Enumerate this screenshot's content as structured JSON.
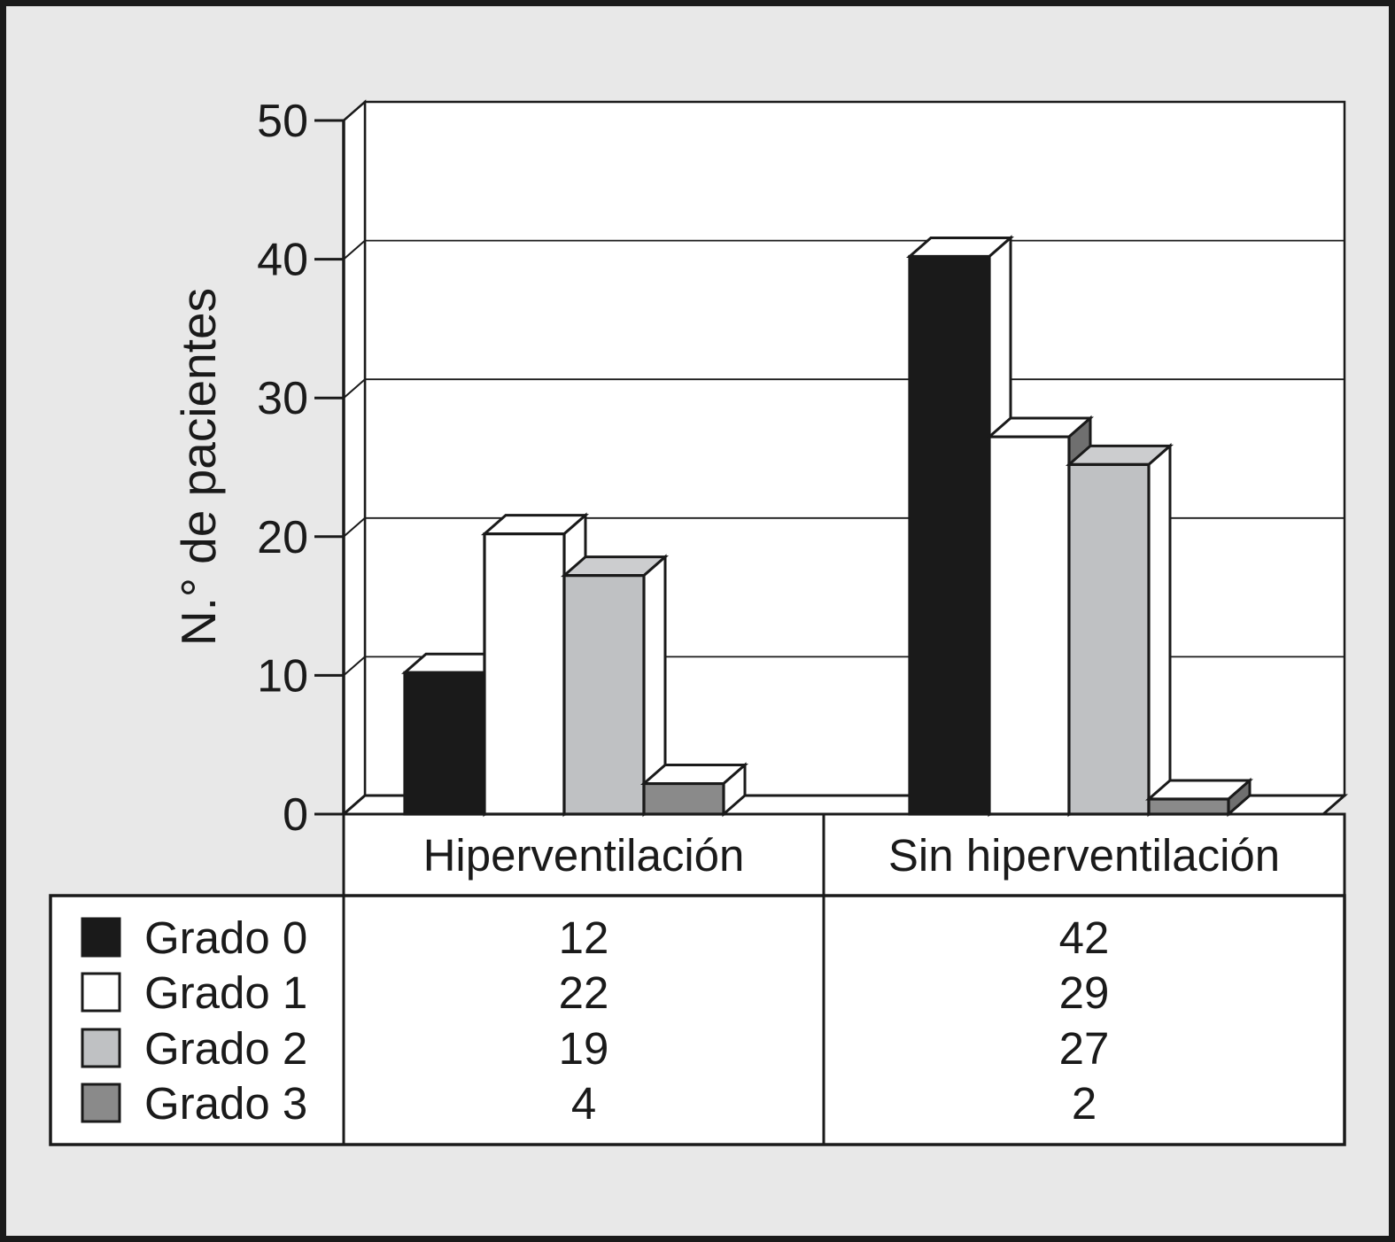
{
  "figure": {
    "background_color": "#e8e8e8",
    "ink_color": "#1a1a1a",
    "plot_fill": "#ffffff"
  },
  "chart_data": {
    "type": "bar",
    "subtype": "grouped-3d-effect",
    "title": "",
    "xlabel": "",
    "ylabel": "N.° de pacientes",
    "categories": [
      "Hiperventilación",
      "Sin hiperventilación"
    ],
    "series": [
      {
        "name": "Grado 0",
        "values": [
          12,
          42
        ],
        "color": "#1a1a1a"
      },
      {
        "name": "Grado 1",
        "values": [
          22,
          29
        ],
        "color": "#ffffff"
      },
      {
        "name": "Grado 2",
        "values": [
          19,
          27
        ],
        "color": "#bfc1c3"
      },
      {
        "name": "Grado 3",
        "values": [
          4,
          2
        ],
        "color": "#8a8a8a"
      }
    ],
    "ylim": [
      0,
      50
    ],
    "yticks": [
      0,
      10,
      20,
      30,
      40,
      50
    ],
    "grid": true,
    "legend_position": "bottom-table-left",
    "face_shading": {
      "top_faces": [
        "#ffffff",
        "#ffffff",
        "#cccdcf",
        "#ffffff"
      ],
      "side_faces_by_group": [
        [
          "#ffffff",
          "#ffffff",
          "#ffffff",
          "#ffffff"
        ],
        [
          "#ffffff",
          "#6f6f6f",
          "#ffffff",
          "#6f6f6f"
        ]
      ]
    },
    "data_table": {
      "columns": [
        "Hiperventilación",
        "Sin hiperventilación"
      ],
      "row_labels": [
        "Grado 0",
        "Grado 1",
        "Grado 2",
        "Grado 3"
      ],
      "rows": [
        [
          12,
          42
        ],
        [
          22,
          29
        ],
        [
          19,
          27
        ],
        [
          4,
          2
        ]
      ]
    }
  }
}
